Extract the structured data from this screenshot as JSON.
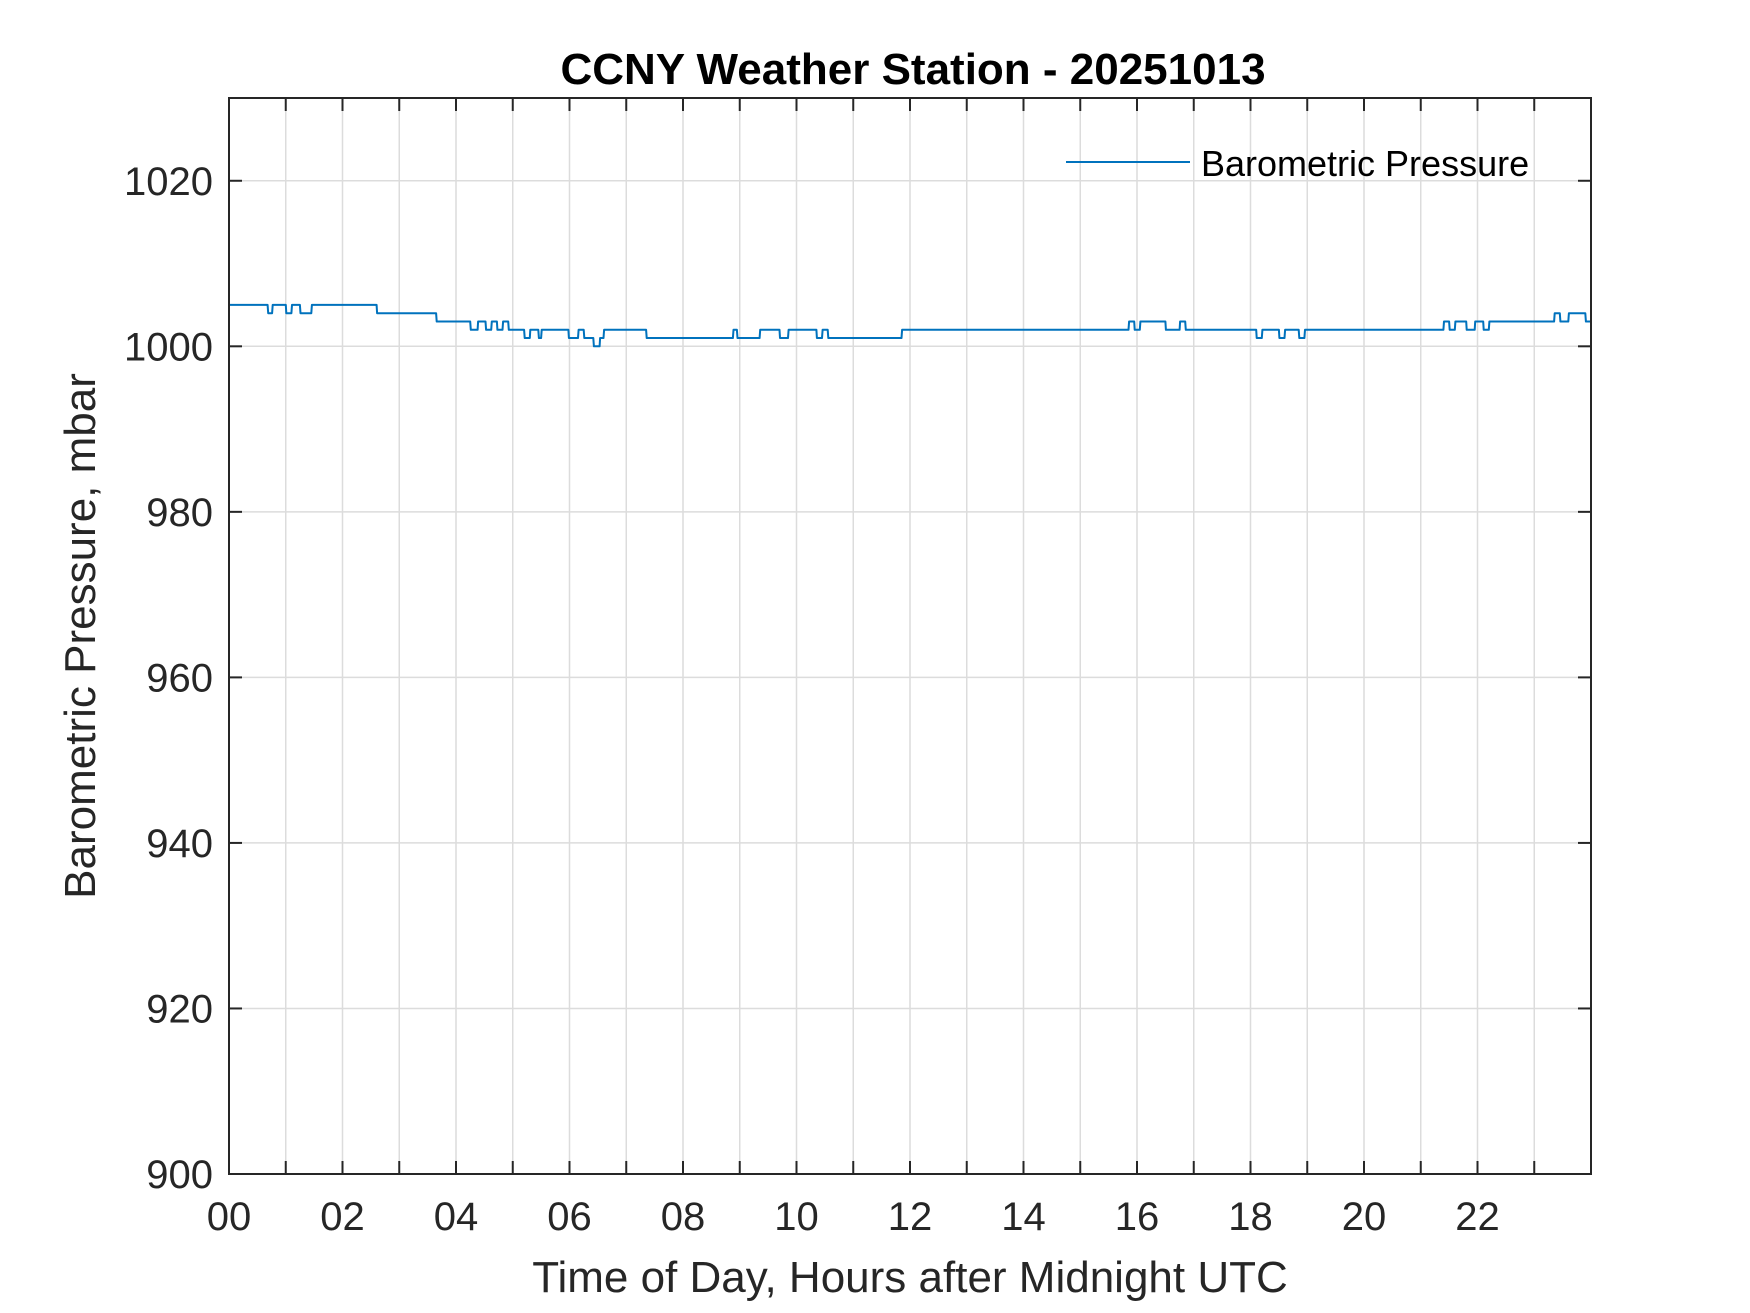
{
  "chart_data": {
    "type": "line",
    "title": "CCNY Weather Station - 20251013",
    "xlabel": "Time of Day, Hours after Midnight UTC",
    "ylabel": "Barometric Pressure, mbar",
    "xlim": [
      0,
      24
    ],
    "ylim": [
      900,
      1030
    ],
    "x_ticks": [
      0,
      2,
      4,
      6,
      8,
      10,
      12,
      14,
      16,
      18,
      20,
      22
    ],
    "x_tick_labels": [
      "00",
      "02",
      "04",
      "06",
      "08",
      "10",
      "12",
      "14",
      "16",
      "18",
      "20",
      "22"
    ],
    "x_minor_ticks": [
      1,
      3,
      5,
      7,
      9,
      11,
      13,
      15,
      17,
      19,
      21,
      23
    ],
    "y_ticks": [
      900,
      920,
      940,
      960,
      980,
      1000,
      1020
    ],
    "y_tick_labels": [
      "900",
      "920",
      "940",
      "960",
      "980",
      "1000",
      "1020"
    ],
    "grid": true,
    "legend_position": "top-right",
    "colors": {
      "series": "#0072BD",
      "axes": "#262626",
      "grid": "#dcdcdc"
    },
    "series": [
      {
        "name": "Barometric Pressure",
        "x": [
          0,
          0.68,
          0.69,
          0.76,
          0.77,
          1.0,
          1.01,
          1.1,
          1.11,
          1.25,
          1.26,
          1.45,
          1.46,
          2.6,
          2.61,
          3.65,
          3.66,
          4.25,
          4.26,
          4.38,
          4.39,
          4.52,
          4.53,
          4.62,
          4.63,
          4.72,
          4.73,
          4.82,
          4.83,
          4.92,
          4.93,
          5.0,
          5.01,
          5.2,
          5.21,
          5.3,
          5.31,
          5.45,
          5.46,
          5.5,
          5.51,
          5.98,
          5.99,
          6.15,
          6.16,
          6.25,
          6.26,
          6.42,
          6.43,
          6.53,
          6.54,
          6.6,
          6.61,
          7.35,
          7.36,
          8.88,
          8.89,
          8.95,
          8.96,
          9.35,
          9.36,
          9.7,
          9.71,
          9.85,
          9.86,
          10.35,
          10.36,
          10.45,
          10.46,
          10.55,
          10.56,
          11.85,
          11.86,
          11.9,
          11.91,
          15.85,
          15.86,
          15.95,
          15.96,
          16.05,
          16.06,
          16.15,
          16.16,
          16.5,
          16.51,
          16.75,
          16.76,
          16.85,
          16.86,
          18.1,
          18.11,
          18.2,
          18.21,
          18.5,
          18.51,
          18.6,
          18.61,
          18.85,
          18.86,
          18.95,
          18.96,
          21.4,
          21.41,
          21.5,
          21.51,
          21.6,
          21.61,
          21.8,
          21.81,
          21.95,
          21.96,
          22.1,
          22.11,
          22.2,
          22.21,
          23.35,
          23.36,
          23.45,
          23.46,
          23.6,
          23.61,
          23.9,
          23.91,
          24.0
        ],
        "y": [
          1005,
          1005,
          1004,
          1004,
          1005,
          1005,
          1004,
          1004,
          1005,
          1005,
          1004,
          1004,
          1005,
          1005,
          1004,
          1004,
          1003,
          1003,
          1002,
          1002,
          1003,
          1003,
          1002,
          1002,
          1003,
          1003,
          1002,
          1002,
          1003,
          1003,
          1002,
          1002,
          1002,
          1002,
          1001,
          1001,
          1002,
          1002,
          1001,
          1001,
          1002,
          1002,
          1001,
          1001,
          1002,
          1002,
          1001,
          1001,
          1000,
          1000,
          1001,
          1001,
          1002,
          1002,
          1001,
          1001,
          1002,
          1002,
          1001,
          1001,
          1002,
          1002,
          1001,
          1001,
          1002,
          1002,
          1001,
          1001,
          1002,
          1002,
          1001,
          1001,
          1002,
          1002,
          1002,
          1002,
          1003,
          1003,
          1002,
          1002,
          1003,
          1003,
          1003,
          1003,
          1002,
          1002,
          1003,
          1003,
          1002,
          1002,
          1001,
          1001,
          1002,
          1002,
          1001,
          1001,
          1002,
          1002,
          1001,
          1001,
          1002,
          1002,
          1003,
          1003,
          1002,
          1002,
          1003,
          1003,
          1002,
          1002,
          1003,
          1003,
          1002,
          1002,
          1003,
          1003,
          1004,
          1004,
          1003,
          1003,
          1004,
          1004,
          1003,
          1003
        ]
      }
    ]
  }
}
